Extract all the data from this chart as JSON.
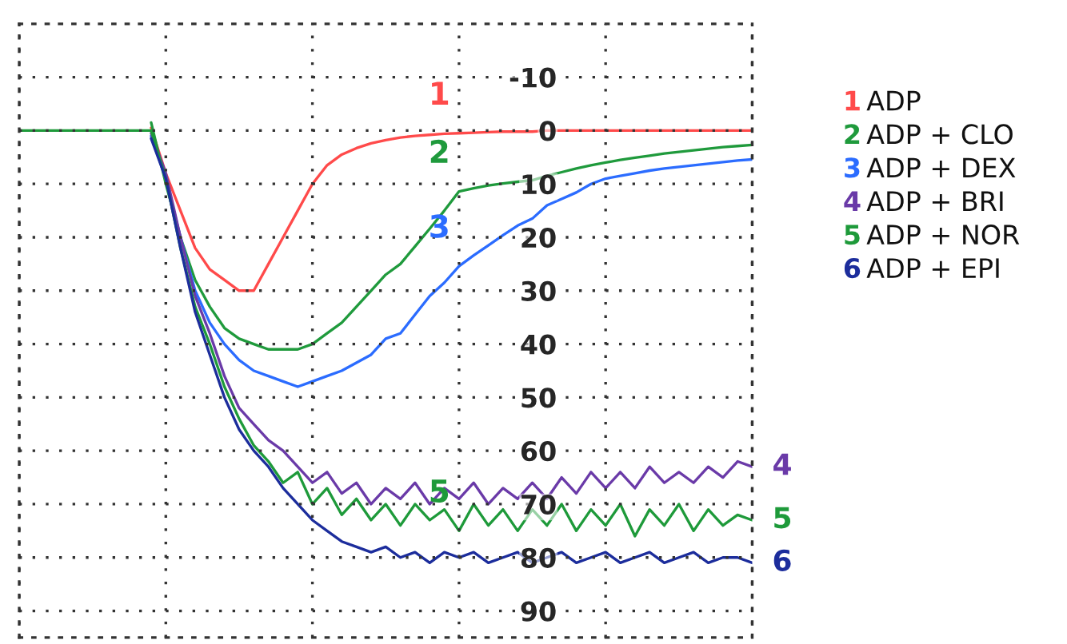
{
  "chart_data": {
    "type": "line",
    "categories": [
      null,
      null,
      null,
      null,
      null,
      null,
      null,
      null,
      null,
      null,
      null,
      null,
      null,
      null,
      null,
      null,
      null,
      null,
      null,
      null,
      null,
      null,
      null,
      null,
      null,
      null,
      null,
      null,
      null,
      null,
      null,
      null,
      null,
      null,
      null,
      null,
      null,
      null,
      null,
      null,
      null,
      null,
      null,
      null,
      null,
      null,
      null,
      null,
      null,
      null,
      null
    ],
    "series": [
      {
        "name": "ADP",
        "color": "#ff4a4a",
        "values": [
          null,
          null,
          null,
          null,
          null,
          null,
          null,
          null,
          null,
          -0.5,
          8,
          15,
          22,
          26,
          28,
          30,
          30,
          25,
          20,
          15,
          10,
          6.5,
          4.5,
          3.3,
          2.4,
          1.8,
          1.3,
          1,
          0.8,
          0.6,
          0.5,
          0.4,
          0.3,
          0.2,
          0.2,
          0.2,
          0,
          0,
          0,
          0,
          0,
          0,
          0,
          0,
          0,
          0,
          0,
          0,
          0,
          0,
          0
        ]
      },
      {
        "name": "ADP + CLO",
        "color": "#1f9a3c",
        "values": [
          null,
          null,
          null,
          null,
          null,
          null,
          null,
          null,
          null,
          -1.5,
          10,
          20,
          28,
          33,
          37,
          39,
          40,
          41,
          41,
          41,
          40,
          38,
          36,
          33,
          30,
          27,
          25,
          21.7,
          18.4,
          15,
          11.4,
          10.8,
          10.3,
          9.9,
          9.6,
          9.3,
          8.5,
          7.8,
          7.1,
          6.5,
          6,
          5.5,
          5.1,
          4.7,
          4.3,
          4,
          3.7,
          3.4,
          3.1,
          2.9,
          2.7
        ]
      },
      {
        "name": "ADP + DEX",
        "color": "#2b6cff",
        "values": [
          null,
          null,
          null,
          null,
          null,
          null,
          null,
          null,
          null,
          1,
          9,
          20,
          30,
          36,
          40,
          43,
          45,
          46,
          47,
          48,
          47,
          46,
          45,
          43.5,
          42,
          39,
          38,
          34.5,
          31,
          28.5,
          25.4,
          23.4,
          21.5,
          19.6,
          17.8,
          16.5,
          14,
          12.8,
          11.6,
          10,
          9,
          8.5,
          8,
          7.5,
          7.1,
          6.8,
          6.5,
          6.2,
          5.9,
          5.6,
          5.4
        ]
      },
      {
        "name": "ADP + BRI",
        "color": "#6a3aa8",
        "values": [
          null,
          null,
          null,
          null,
          null,
          null,
          null,
          null,
          null,
          0.5,
          8,
          20,
          31,
          38,
          46,
          52,
          55,
          58,
          60,
          63,
          66,
          64,
          68,
          66,
          70,
          67,
          69,
          66,
          70,
          67,
          69,
          66,
          70,
          67,
          69,
          66,
          69,
          65,
          68,
          64,
          67,
          64,
          67,
          63,
          66,
          64,
          66,
          63,
          65,
          62,
          63
        ]
      },
      {
        "name": "ADP + NOR",
        "color": "#1e9a3a",
        "values": [
          0,
          0,
          0,
          0,
          0,
          0,
          0,
          0,
          0,
          0,
          9,
          22,
          33,
          40,
          48,
          54,
          59,
          62,
          66,
          64,
          70,
          67,
          72,
          69,
          73,
          70,
          74,
          70,
          73,
          71,
          75,
          70,
          74,
          71,
          75,
          71,
          74,
          70,
          75,
          71,
          74,
          70,
          76,
          71,
          74,
          70,
          75,
          71,
          74,
          72,
          73
        ]
      },
      {
        "name": "ADP + EPI",
        "color": "#1c2d9c",
        "values": [
          null,
          null,
          null,
          null,
          null,
          null,
          null,
          null,
          null,
          1.5,
          9,
          22,
          34,
          42,
          50,
          56,
          60,
          63,
          67,
          70,
          73,
          75,
          77,
          78,
          79,
          78,
          80,
          79,
          81,
          79,
          80,
          79,
          81,
          80,
          79,
          81,
          80,
          79,
          81,
          80,
          79,
          81,
          80,
          79,
          81,
          80,
          79,
          81,
          80,
          80,
          81
        ]
      }
    ],
    "ylim": [
      95,
      -20
    ],
    "yticks": [
      -10,
      0,
      10,
      20,
      30,
      40,
      50,
      60,
      70,
      80,
      90
    ],
    "tick_labels": "y",
    "grid": true,
    "legend": "right",
    "annotations": [
      "1",
      "2",
      "3",
      "5",
      "4",
      "5",
      "6"
    ]
  }
}
